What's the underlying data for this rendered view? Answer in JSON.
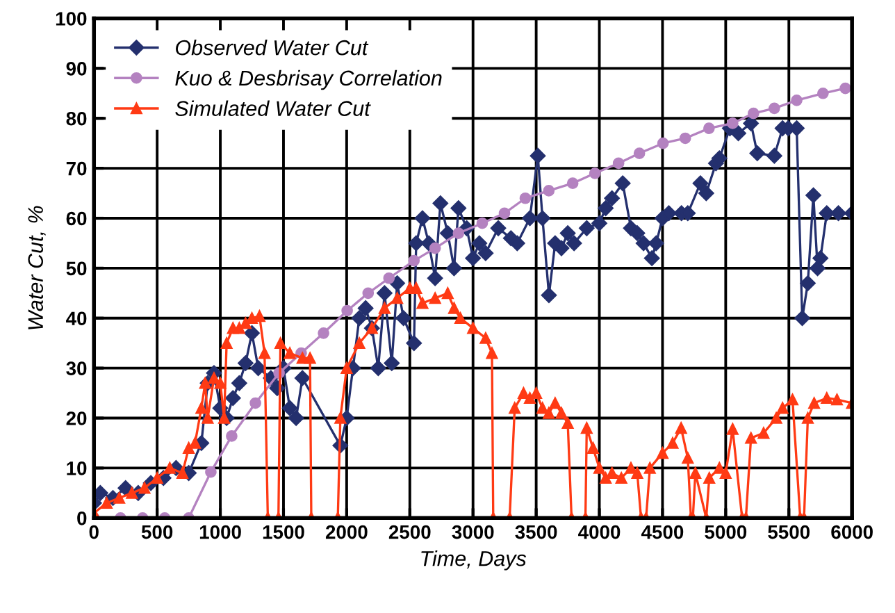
{
  "chart_data": {
    "type": "line",
    "xlabel": "Time, Days",
    "ylabel": "Water Cut, %",
    "xlim": [
      0,
      6000
    ],
    "xticks": [
      0,
      500,
      1000,
      1500,
      2000,
      2500,
      3000,
      3500,
      4000,
      4500,
      5000,
      5500,
      6000
    ],
    "ylim": [
      0,
      100
    ],
    "yticks": [
      0,
      10,
      20,
      30,
      40,
      50,
      60,
      70,
      80,
      90,
      100
    ],
    "grid": true,
    "legend": "top left",
    "series": [
      {
        "name": "Observed Water Cut",
        "color": "#24306e",
        "marker": "diamond",
        "x": [
          0,
          50,
          150,
          250,
          350,
          450,
          550,
          650,
          750,
          850,
          900,
          950,
          1000,
          1050,
          1100,
          1150,
          1200,
          1250,
          1300,
          1400,
          1450,
          1500,
          1550,
          1600,
          1650,
          1950,
          2000,
          2050,
          2100,
          2150,
          2200,
          2250,
          2300,
          2357,
          2400,
          2450,
          2533,
          2550,
          2600,
          2650,
          2700,
          2742,
          2800,
          2850,
          2885,
          2950,
          3000,
          3050,
          3100,
          3200,
          3300,
          3350,
          3450,
          3513,
          3550,
          3601,
          3650,
          3700,
          3750,
          3800,
          3900,
          4000,
          4050,
          4100,
          4185,
          4250,
          4300,
          4350,
          4416,
          4450,
          4500,
          4550,
          4650,
          4700,
          4800,
          4846,
          4923,
          4950,
          5033,
          5100,
          5200,
          5250,
          5385,
          5450,
          5495,
          5562,
          5606,
          5650,
          5694,
          5727,
          5750,
          5800,
          5892,
          6000
        ],
        "values": [
          3,
          5,
          4,
          6,
          5,
          7,
          8,
          10,
          9,
          15,
          27,
          29,
          22,
          20,
          24,
          27,
          31,
          37,
          30,
          28,
          26,
          30,
          22,
          20,
          28,
          14.5,
          20,
          30,
          40,
          42,
          38,
          30,
          45,
          31,
          47,
          40,
          35,
          55,
          60,
          55,
          48,
          63,
          57,
          50,
          62,
          58,
          52,
          55,
          53,
          58,
          56,
          55,
          60,
          72.5,
          60,
          44.6,
          55,
          54,
          57,
          55,
          58,
          59,
          62,
          64,
          67,
          58,
          57,
          55,
          52,
          55,
          60,
          61,
          61,
          61,
          67,
          65,
          71,
          72,
          78,
          77,
          79,
          73,
          72.5,
          78,
          78,
          78,
          40,
          47,
          64.6,
          50,
          52,
          61,
          61,
          61
        ]
      },
      {
        "name": "Kuo & Desbrisay Correlation",
        "color": "#b482c0",
        "marker": "circle",
        "x": [
          0,
          210,
          385,
          560,
          750,
          925,
          1090,
          1278,
          1465,
          1640,
          1817,
          2004,
          2170,
          2335,
          2533,
          2700,
          2885,
          3073,
          3249,
          3414,
          3600,
          3789,
          3965,
          4152,
          4317,
          4504,
          4680,
          4868,
          5055,
          5220,
          5385,
          5562,
          5770,
          5947
        ],
        "values": [
          0,
          0,
          0,
          0,
          0,
          9.2,
          16.4,
          23,
          29,
          33,
          37,
          41.5,
          45,
          48,
          51.5,
          54,
          57,
          59,
          61,
          64,
          65.5,
          67,
          69,
          71,
          73,
          75,
          76,
          78,
          79,
          81,
          82,
          83.6,
          85,
          86
        ]
      },
      {
        "name": "Simulated Water Cut",
        "color": "#ff3a14",
        "marker": "triangle",
        "x": [
          0,
          100,
          200,
          300,
          400,
          500,
          600,
          700,
          750,
          800,
          850,
          880,
          900,
          950,
          1000,
          1030,
          1050,
          1100,
          1150,
          1200,
          1250,
          1310,
          1350,
          1376,
          1460,
          1476,
          1550,
          1650,
          1710,
          1720,
          1930,
          1950,
          2000,
          2100,
          2200,
          2300,
          2400,
          2500,
          2550,
          2600,
          2700,
          2800,
          2850,
          2900,
          3000,
          3100,
          3150,
          3160,
          3290,
          3330,
          3400,
          3450,
          3500,
          3550,
          3600,
          3650,
          3700,
          3750,
          3780,
          3890,
          3900,
          3950,
          4000,
          4050,
          4100,
          4174,
          4250,
          4300,
          4330,
          4370,
          4400,
          4500,
          4580,
          4647,
          4700,
          4725,
          4740,
          4760,
          4846,
          4870,
          4950,
          5000,
          5055,
          5130,
          5160,
          5200,
          5300,
          5400,
          5450,
          5529,
          5590,
          5620,
          5650,
          5700,
          5800,
          5881,
          6000
        ],
        "values": [
          1,
          3,
          4,
          5,
          6,
          8,
          10,
          9,
          14,
          15,
          22,
          27,
          20,
          28,
          27,
          20,
          35,
          38,
          38,
          39,
          40,
          40.4,
          33,
          0,
          0,
          35,
          33,
          32,
          32,
          0,
          0,
          20,
          30,
          35,
          38,
          42,
          44,
          46,
          46,
          43,
          44,
          45,
          42,
          40,
          38,
          36,
          33,
          0,
          0,
          22,
          25,
          24,
          25,
          22,
          21,
          23,
          21,
          19,
          0,
          0,
          18,
          14,
          10,
          8,
          9,
          8,
          10,
          9,
          0,
          0,
          10,
          13,
          15,
          18,
          12,
          0,
          0,
          9,
          0,
          8,
          10,
          9,
          17.8,
          0,
          0,
          16,
          17,
          20,
          22,
          23.7,
          0,
          0,
          20,
          23,
          24,
          23.7,
          23
        ]
      }
    ]
  }
}
